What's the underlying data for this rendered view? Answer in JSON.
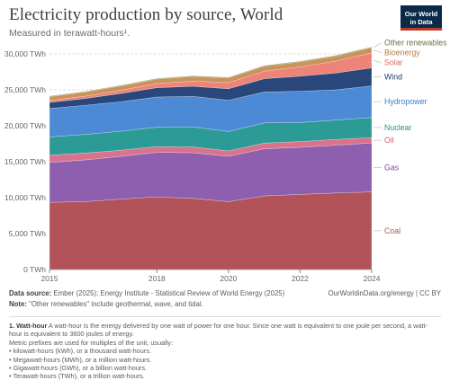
{
  "header": {
    "title": "Electricity production by source, World",
    "subtitle": "Measured in terawatt-hours¹."
  },
  "logo": {
    "line1": "Our World",
    "line2": "in Data"
  },
  "chart_data": {
    "type": "area",
    "stacked": true,
    "x": [
      2015,
      2016,
      2017,
      2018,
      2019,
      2020,
      2021,
      2022,
      2023,
      2024
    ],
    "xticks": [
      "2015",
      "2018",
      "2020",
      "2022",
      "2024"
    ],
    "yticks": [
      "0 TWh",
      "5,000 TWh",
      "10,000 TWh",
      "15,000 TWh",
      "20,000 TWh",
      "25,000 TWh",
      "30,000 TWh"
    ],
    "ylim": [
      0,
      30000
    ],
    "series": [
      {
        "name": "Coal",
        "color": "#b2535a",
        "label_color": "#b2535a",
        "values": [
          9350,
          9450,
          9800,
          10100,
          9900,
          9450,
          10250,
          10450,
          10650,
          10800
        ]
      },
      {
        "name": "Gas",
        "color": "#8d5fae",
        "label_color": "#7a4a9c",
        "values": [
          5550,
          5800,
          5950,
          6200,
          6350,
          6300,
          6550,
          6550,
          6650,
          6800
        ]
      },
      {
        "name": "Oil",
        "color": "#d9728a",
        "label_color": "#d65d78",
        "values": [
          1000,
          950,
          850,
          800,
          800,
          750,
          800,
          800,
          800,
          750
        ]
      },
      {
        "name": "Nuclear",
        "color": "#2c9b95",
        "label_color": "#1f8f89",
        "values": [
          2550,
          2600,
          2650,
          2700,
          2800,
          2700,
          2800,
          2650,
          2700,
          2800
        ]
      },
      {
        "name": "Hydropower",
        "color": "#4d8ad6",
        "label_color": "#3e7bc7",
        "values": [
          3950,
          4050,
          4100,
          4200,
          4250,
          4350,
          4300,
          4350,
          4200,
          4400
        ]
      },
      {
        "name": "Wind",
        "color": "#29477a",
        "label_color": "#1d3a6b",
        "values": [
          850,
          950,
          1150,
          1300,
          1400,
          1600,
          1850,
          2100,
          2350,
          2500
        ]
      },
      {
        "name": "Solar",
        "color": "#ee8377",
        "label_color": "#e06a5e",
        "values": [
          250,
          330,
          450,
          580,
          710,
          850,
          1050,
          1300,
          1650,
          2100
        ]
      },
      {
        "name": "Bioenergy",
        "color": "#c9935c",
        "label_color": "#b17a40",
        "values": [
          550,
          570,
          600,
          620,
          640,
          660,
          690,
          690,
          700,
          720
        ]
      },
      {
        "name": "Other renewables",
        "color": "#8c8a52",
        "label_color": "#6d7040",
        "values": [
          85,
          88,
          90,
          92,
          95,
          95,
          97,
          98,
          100,
          100
        ]
      }
    ]
  },
  "footer": {
    "source_label": "Data source:",
    "source_text": " Ember (2025); Energy Institute - Statistical Review of World Energy (2025)",
    "url": "OurWorldinData.org/energy | CC BY",
    "note_label": "Note:",
    "note_text": " \"Other renewables\" include geothermal, wave, and tidal."
  },
  "footnote": {
    "term": "1. Watt-hour",
    "intro": " A watt-hour is the energy delivered by one watt of power for one hour. Since one watt is equivalent to one joule per second, a watt-hour is equivalent to 3600 joules of energy.",
    "line": "Metric prefixes are used for multiples of the unit, usually:",
    "items": [
      "• kilowatt-hours (kWh), or a thousand watt-hours.",
      "• Megawatt-hours (MWh), or a million watt-hours.",
      "• Gigawatt-hours (GWh), or a billion watt-hours.",
      "• Terawatt-hours (TWh), or a trillion watt-hours."
    ]
  }
}
